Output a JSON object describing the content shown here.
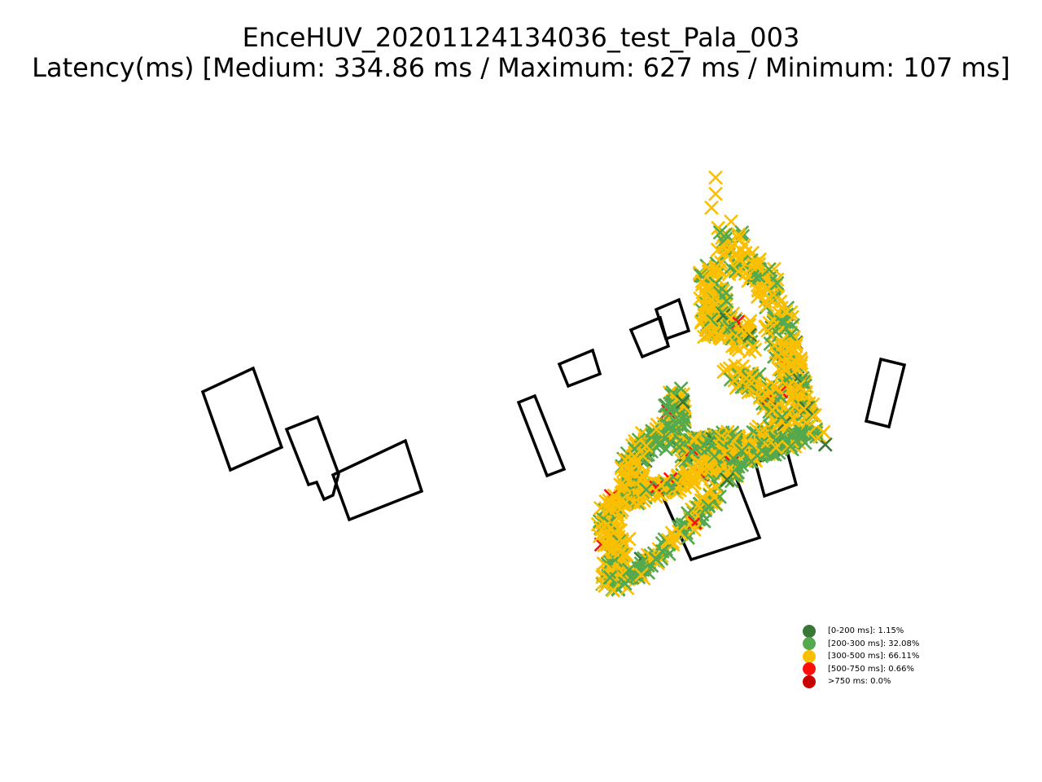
{
  "chart_data": {
    "type": "scatter",
    "title": "EnceHUV_20201124134036_test_Pala_003",
    "subtitle": "Latency(ms) [Medium: 334.86 ms / Maximum: 627 ms / Minimum: 107 ms]",
    "marker": "x",
    "axes_visible": false,
    "legend_position": "lower-right",
    "legend": [
      {
        "label": "[0-200 ms]: 1.15%",
        "color": "#3a7736",
        "percent": 1.15
      },
      {
        "label": "[200-300 ms]: 32.08%",
        "color": "#54a94f",
        "percent": 32.08
      },
      {
        "label": "[300-500 ms]: 66.11%",
        "color": "#fbbf02",
        "percent": 66.11
      },
      {
        "label": "[500-750 ms]: 0.66%",
        "color": "#ff0d0d",
        "percent": 0.66
      },
      {
        "label": ">750 ms: 0.0%",
        "color": "#c90000",
        "percent": 0.0
      }
    ],
    "stats": {
      "medium_ms": 334.86,
      "maximum_ms": 627,
      "minimum_ms": 107
    }
  }
}
